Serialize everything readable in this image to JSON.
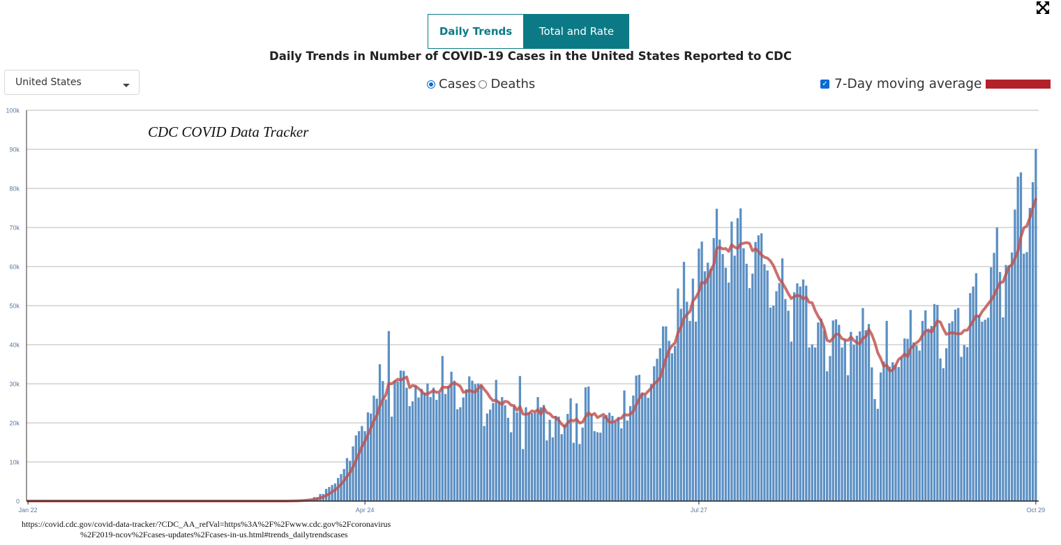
{
  "toolbar": {
    "expand_icon": "expand-arrows-icon"
  },
  "tabs": [
    {
      "label": "Daily Trends",
      "active": false
    },
    {
      "label": "Total and Rate",
      "active": true
    }
  ],
  "title": "Daily Trends in Number of COVID-19 Cases in the United States Reported to CDC",
  "region_select": {
    "value": "United States"
  },
  "metric_toggle": {
    "options": [
      "Cases",
      "Deaths"
    ],
    "selected": "Cases"
  },
  "moving_average": {
    "label": "7-Day moving average",
    "checked": true
  },
  "watermark": "CDC COVID Data Tracker",
  "source_url": {
    "line1": "https://covid.cdc.gov/covid-data-tracker/?CDC_AA_refVal=https%3A%2F%2Fwww.cdc.gov%2Fcoronavirus",
    "line2": "%2F2019-ncov%2Fcases-updates%2Fcases-in-us.html#trends_dailytrendscases"
  },
  "colors": {
    "bar": "#5b8fc3",
    "moving_average": "#c0504d",
    "legend_swatch": "#b2222b",
    "accent": "#0b7a86",
    "grid": "#b8b8b8"
  },
  "chart_data": {
    "type": "bar",
    "x_start": "2020-01-22",
    "x_end": "2020-10-29",
    "x_tick_labels": [
      "Jan 22",
      "Apr 24",
      "Jul 27",
      "Oct 29"
    ],
    "y_ticks": [
      "0",
      "10k",
      "20k",
      "30k",
      "40k",
      "50k",
      "60k",
      "70k",
      "80k",
      "90k",
      "100k"
    ],
    "ylim": [
      0,
      100000
    ],
    "grid": true,
    "series": [
      {
        "kind": "bar",
        "name": "Cases"
      },
      {
        "kind": "line",
        "name": "7-Day moving average"
      }
    ],
    "values": [
      0,
      0,
      0,
      0,
      0,
      0,
      0,
      0,
      0,
      0,
      0,
      0,
      0,
      0,
      0,
      0,
      0,
      0,
      0,
      0,
      0,
      0,
      0,
      0,
      0,
      0,
      0,
      0,
      0,
      0,
      0,
      0,
      0,
      0,
      0,
      0,
      0,
      0,
      0,
      0,
      0,
      0,
      0,
      0,
      0,
      0,
      0,
      0,
      0,
      0,
      0,
      0,
      0,
      0,
      0,
      0,
      0,
      0,
      0,
      0,
      0,
      0,
      0,
      0,
      0,
      0,
      0,
      0,
      0,
      0,
      0,
      0,
      0,
      0,
      0,
      0,
      0,
      0,
      0,
      0,
      0,
      0,
      0,
      0,
      0,
      0,
      0,
      0,
      100,
      100,
      200,
      200,
      300,
      400,
      500,
      500,
      1000,
      1000,
      1800,
      1800,
      3100,
      3600,
      4100,
      4500,
      5900,
      6900,
      8200,
      11000,
      10300,
      14000,
      16800,
      17900,
      19200,
      17900,
      22700,
      22400,
      27000,
      26200,
      35000,
      30700,
      26000,
      43500,
      21600,
      30900,
      30600,
      33400,
      33300,
      29000,
      24300,
      25500,
      29500,
      26500,
      28700,
      27700,
      30100,
      26600,
      29000,
      25900,
      27600,
      37100,
      27400,
      29500,
      33100,
      30800,
      23500,
      24000,
      26500,
      28600,
      31900,
      30800,
      29900,
      30100,
      29600,
      19200,
      22400,
      23400,
      25100,
      31000,
      25600,
      26600,
      24500,
      21300,
      17600,
      24300,
      22700,
      32000,
      13300,
      24000,
      22700,
      22500,
      22600,
      26600,
      24000,
      24600,
      15500,
      20800,
      16300,
      21800,
      21600,
      17100,
      19600,
      22300,
      26300,
      14900,
      25000,
      14600,
      18800,
      29100,
      29300,
      22200,
      17900,
      17600,
      17500,
      21600,
      22000,
      22600,
      21800,
      20300,
      21500,
      18600,
      28300,
      20600,
      24300,
      27000,
      32100,
      32300,
      27600,
      27100,
      26400,
      29900,
      34500,
      36400,
      39100,
      44700,
      44700,
      41000,
      37800,
      39700,
      54400,
      49200,
      61200,
      51000,
      46100,
      56900,
      45900,
      64600,
      66400,
      58800,
      61000,
      59500,
      67300,
      74800,
      66900,
      63200,
      59700,
      55900,
      71500,
      62800,
      72400,
      74900,
      64700,
      60700,
      54500,
      58200,
      66300,
      68000,
      68500,
      60600,
      59000,
      49500,
      50000,
      53700,
      55800,
      62100,
      51700,
      48700,
      40800,
      53400,
      55700,
      54900,
      56700,
      55100,
      39300,
      40100,
      39300,
      45700,
      46700,
      43600,
      33200,
      37100,
      46200,
      46500,
      45100,
      39300,
      41300,
      32200,
      43300,
      40000,
      42300,
      43400,
      49400,
      43700,
      45300,
      34200,
      26100,
      23600,
      32900,
      35700,
      46100,
      34400,
      35500,
      34800,
      34300,
      36800,
      41600,
      41500,
      48900,
      40600,
      39800,
      38500,
      46100,
      48800,
      43800,
      44800,
      50400,
      50200,
      36500,
      34000,
      39100,
      45500,
      46000,
      49000,
      49400,
      36900,
      39900,
      39400,
      53200,
      54900,
      58300,
      47600,
      45900,
      46400,
      46900,
      59800,
      63500,
      70000,
      58600,
      47000,
      60400,
      60300,
      63600,
      74600,
      83000,
      84100,
      63300,
      63700,
      75000,
      81600,
      90100
    ]
  }
}
